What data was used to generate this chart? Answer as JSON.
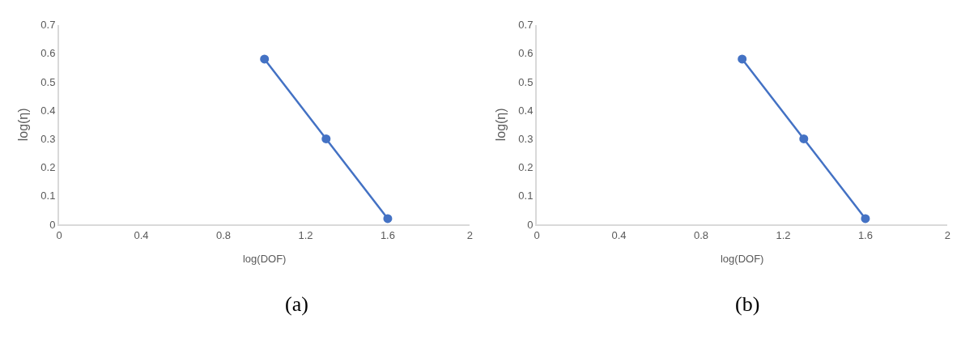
{
  "chart_data": [
    {
      "type": "line",
      "xlabel": "log(DOF)",
      "ylabel": "log(η)",
      "annotations": [
        "(a)"
      ],
      "x": [
        1.0,
        1.3,
        1.6
      ],
      "series": [
        {
          "color": "#4472c4",
          "values": [
            0.58,
            0.3,
            0.02
          ]
        }
      ],
      "xlim": [
        0,
        2
      ],
      "xticks": [
        0,
        0.4,
        0.8,
        1.2,
        1.6,
        2
      ],
      "ylim": [
        0,
        0.7
      ],
      "yticks": [
        0,
        0.1,
        0.2,
        0.3,
        0.4,
        0.5,
        0.6,
        0.7
      ],
      "marker": "circle",
      "line_style": "solid"
    },
    {
      "type": "line",
      "xlabel": "log(DOF)",
      "ylabel": "log(η)",
      "annotations": [
        "(b)"
      ],
      "x": [
        1.0,
        1.3,
        1.6
      ],
      "series": [
        {
          "color": "#4472c4",
          "values": [
            0.58,
            0.3,
            0.02
          ]
        }
      ],
      "xlim": [
        0,
        2
      ],
      "xticks": [
        0,
        0.4,
        0.8,
        1.2,
        1.6,
        2
      ],
      "ylim": [
        0,
        0.7
      ],
      "yticks": [
        0,
        0.1,
        0.2,
        0.3,
        0.4,
        0.5,
        0.6,
        0.7
      ],
      "marker": "circle",
      "line_style": "solid"
    }
  ]
}
